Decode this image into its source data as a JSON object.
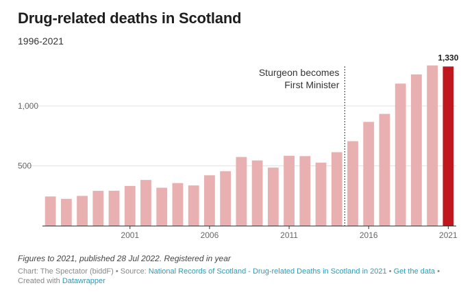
{
  "header": {
    "title": "Drug-related deaths in Scotland",
    "subtitle": "1996-2021"
  },
  "chart_data": {
    "type": "bar",
    "x": [
      1996,
      1997,
      1998,
      1999,
      2000,
      2001,
      2002,
      2003,
      2004,
      2005,
      2006,
      2007,
      2008,
      2009,
      2010,
      2011,
      2012,
      2013,
      2014,
      2015,
      2016,
      2017,
      2018,
      2019,
      2020,
      2021
    ],
    "values": [
      244,
      224,
      249,
      291,
      292,
      332,
      382,
      317,
      356,
      336,
      421,
      455,
      574,
      545,
      485,
      584,
      581,
      527,
      614,
      706,
      867,
      934,
      1187,
      1264,
      1339,
      1330
    ],
    "ylim": [
      0,
      1400
    ],
    "yticks": [
      500,
      1000
    ],
    "ytick_labels": [
      "500",
      "1,000"
    ],
    "xticks": [
      2001,
      2006,
      2011,
      2016,
      2021
    ],
    "xtick_labels": [
      "2001",
      "2006",
      "2011",
      "2016",
      "2021"
    ],
    "grid": true,
    "colors": {
      "bar": "#e8b0b1",
      "highlight": "#c0161e",
      "grid": "#e3e3e3",
      "axis": "#333333",
      "marker": "#555555"
    },
    "highlight": {
      "x": 2021,
      "label": "1,330"
    },
    "annotation": {
      "lines": [
        "Sturgeon becomes",
        "First Minister"
      ],
      "x_between": [
        2014,
        2015
      ]
    }
  },
  "footer": {
    "notes": "Figures to 2021, published 28 Jul 2022. Registered in year",
    "chart_by": "Chart: The Spectator (biddF) • Source: ",
    "source_link": "National Records of Scotland - Drug-related Deaths in Scotland in 2021",
    "separator": " • ",
    "get_data": "Get the data",
    "after_get_data": " •",
    "created_with": "Created with ",
    "datawrapper": "Datawrapper"
  }
}
